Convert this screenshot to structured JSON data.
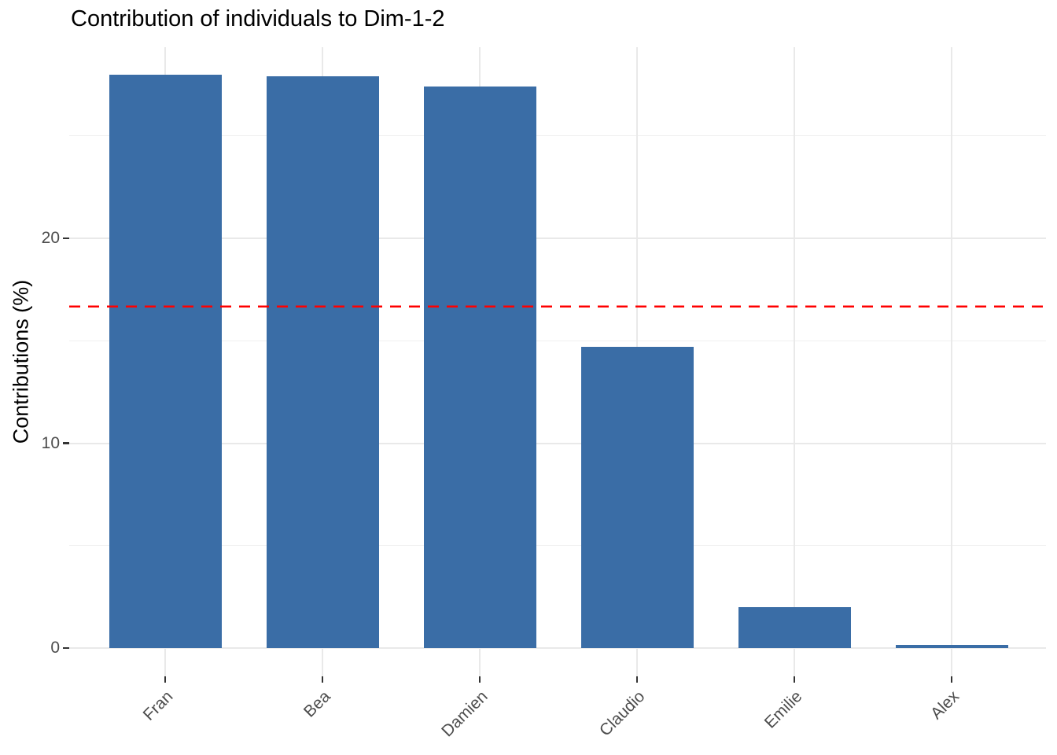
{
  "chart_data": {
    "type": "bar",
    "title": "Contribution of individuals to Dim-1-2",
    "xlabel": "",
    "ylabel": "Contributions (%)",
    "categories": [
      "Fran",
      "Bea",
      "Damien",
      "Claudio",
      "Emilie",
      "Alex"
    ],
    "values": [
      28.0,
      27.9,
      27.4,
      14.7,
      2.0,
      0.15
    ],
    "ylim": [
      0,
      29.4
    ],
    "y_ticks": [
      0,
      10,
      20
    ],
    "y_tick_labels": [
      "0",
      "10",
      "20"
    ],
    "y_minor_ticks": [
      5,
      15,
      25
    ],
    "grid": "on",
    "legend": "none",
    "x_label_angle": 45,
    "reference_line": {
      "value": 16.67,
      "style": "dashed"
    }
  },
  "colors": {
    "bar_fill": "#3A6DA6",
    "reference_line": "#FF0000",
    "grid_major": "#E9E9E9",
    "grid_minor": "#F0F0F0",
    "tick_mark": "#333333",
    "axis_text": "#4D4D4D",
    "title_text": "#000000"
  }
}
